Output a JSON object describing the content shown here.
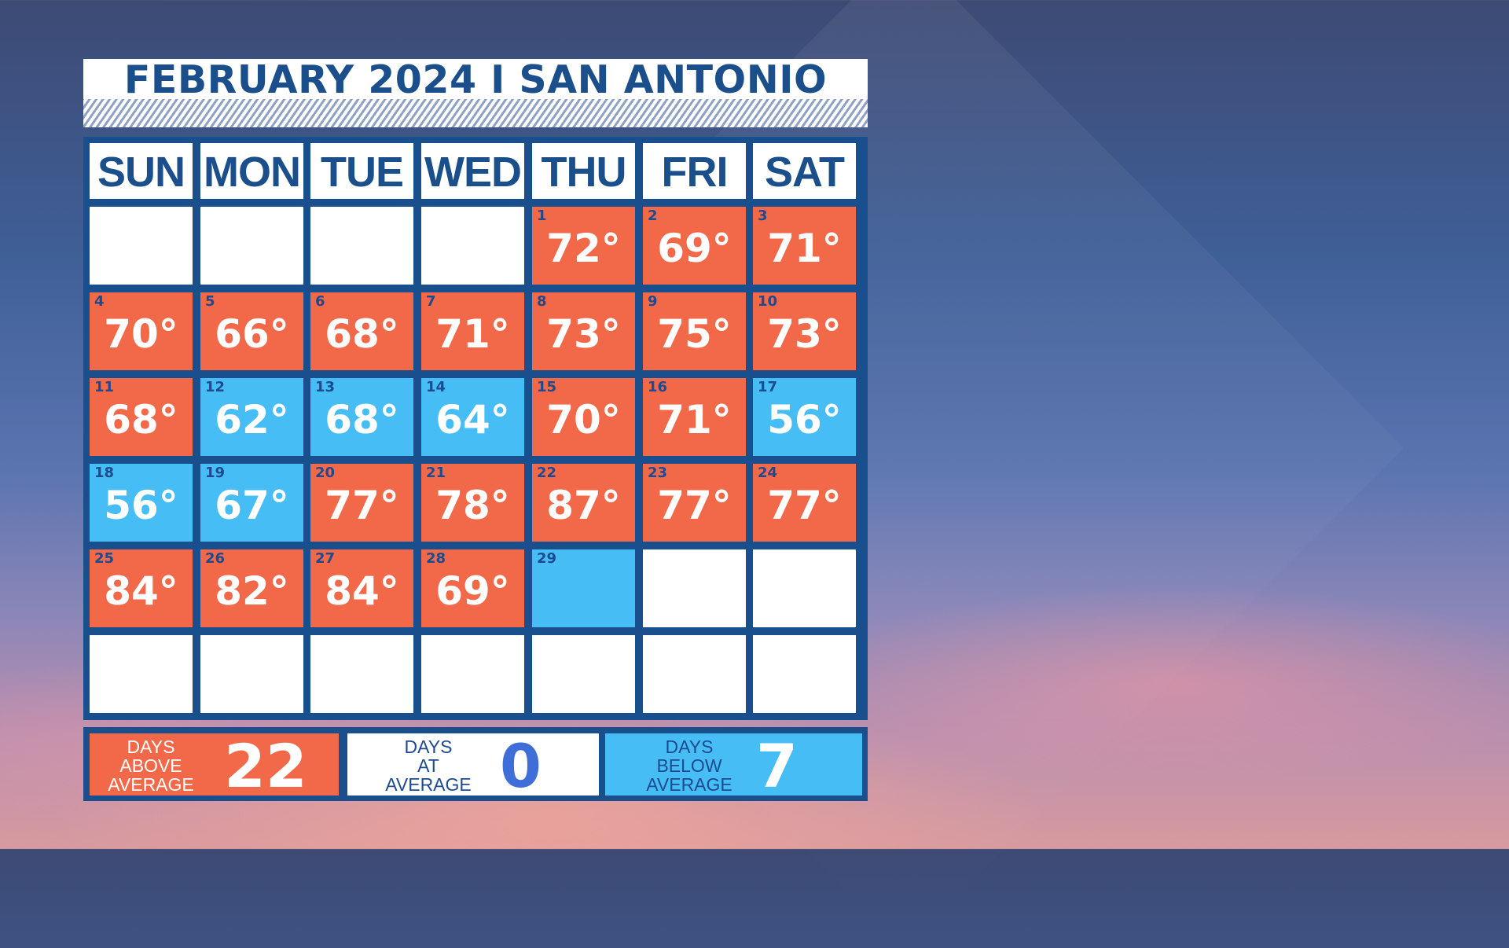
{
  "title": "FEBRUARY 2024 I SAN ANTONIO",
  "weekdays": [
    "SUN",
    "MON",
    "TUE",
    "WED",
    "THU",
    "FRI",
    "SAT"
  ],
  "colors": {
    "above": "#f2694a",
    "below": "#47bdf6",
    "empty": "#ffffff",
    "grid": "#1a4f8d",
    "title_text": "#1b4f8c"
  },
  "days": [
    {
      "day": "1",
      "temp": "72°",
      "status": "above"
    },
    {
      "day": "2",
      "temp": "69°",
      "status": "above"
    },
    {
      "day": "3",
      "temp": "71°",
      "status": "above"
    },
    {
      "day": "4",
      "temp": "70°",
      "status": "above"
    },
    {
      "day": "5",
      "temp": "66°",
      "status": "above"
    },
    {
      "day": "6",
      "temp": "68°",
      "status": "above"
    },
    {
      "day": "7",
      "temp": "71°",
      "status": "above"
    },
    {
      "day": "8",
      "temp": "73°",
      "status": "above"
    },
    {
      "day": "9",
      "temp": "75°",
      "status": "above"
    },
    {
      "day": "10",
      "temp": "73°",
      "status": "above"
    },
    {
      "day": "11",
      "temp": "68°",
      "status": "above"
    },
    {
      "day": "12",
      "temp": "62°",
      "status": "below"
    },
    {
      "day": "13",
      "temp": "68°",
      "status": "below"
    },
    {
      "day": "14",
      "temp": "64°",
      "status": "below"
    },
    {
      "day": "15",
      "temp": "70°",
      "status": "above"
    },
    {
      "day": "16",
      "temp": "71°",
      "status": "above"
    },
    {
      "day": "17",
      "temp": "56°",
      "status": "below"
    },
    {
      "day": "18",
      "temp": "56°",
      "status": "below"
    },
    {
      "day": "19",
      "temp": "67°",
      "status": "below"
    },
    {
      "day": "20",
      "temp": "77°",
      "status": "above"
    },
    {
      "day": "21",
      "temp": "78°",
      "status": "above"
    },
    {
      "day": "22",
      "temp": "87°",
      "status": "above"
    },
    {
      "day": "23",
      "temp": "77°",
      "status": "above"
    },
    {
      "day": "24",
      "temp": "77°",
      "status": "above"
    },
    {
      "day": "25",
      "temp": "84°",
      "status": "above"
    },
    {
      "day": "26",
      "temp": "82°",
      "status": "above"
    },
    {
      "day": "27",
      "temp": "84°",
      "status": "above"
    },
    {
      "day": "28",
      "temp": "69°",
      "status": "above"
    },
    {
      "day": "29",
      "temp": "",
      "status": "below"
    }
  ],
  "summary": {
    "above": {
      "label": [
        "DAYS",
        "ABOVE",
        "AVERAGE"
      ],
      "value": "22",
      "value_color": "#ffffff",
      "label_color": "#ffffff"
    },
    "at": {
      "label": [
        "DAYS",
        "AT",
        "AVERAGE"
      ],
      "value": "0",
      "value_color": "#3f6ed8",
      "label_color": "#1e4a8f"
    },
    "below": {
      "label": [
        "DAYS",
        "BELOW",
        "AVERAGE"
      ],
      "value": "7",
      "value_color": "#ffffff",
      "label_color": "#1e4a8f"
    }
  }
}
